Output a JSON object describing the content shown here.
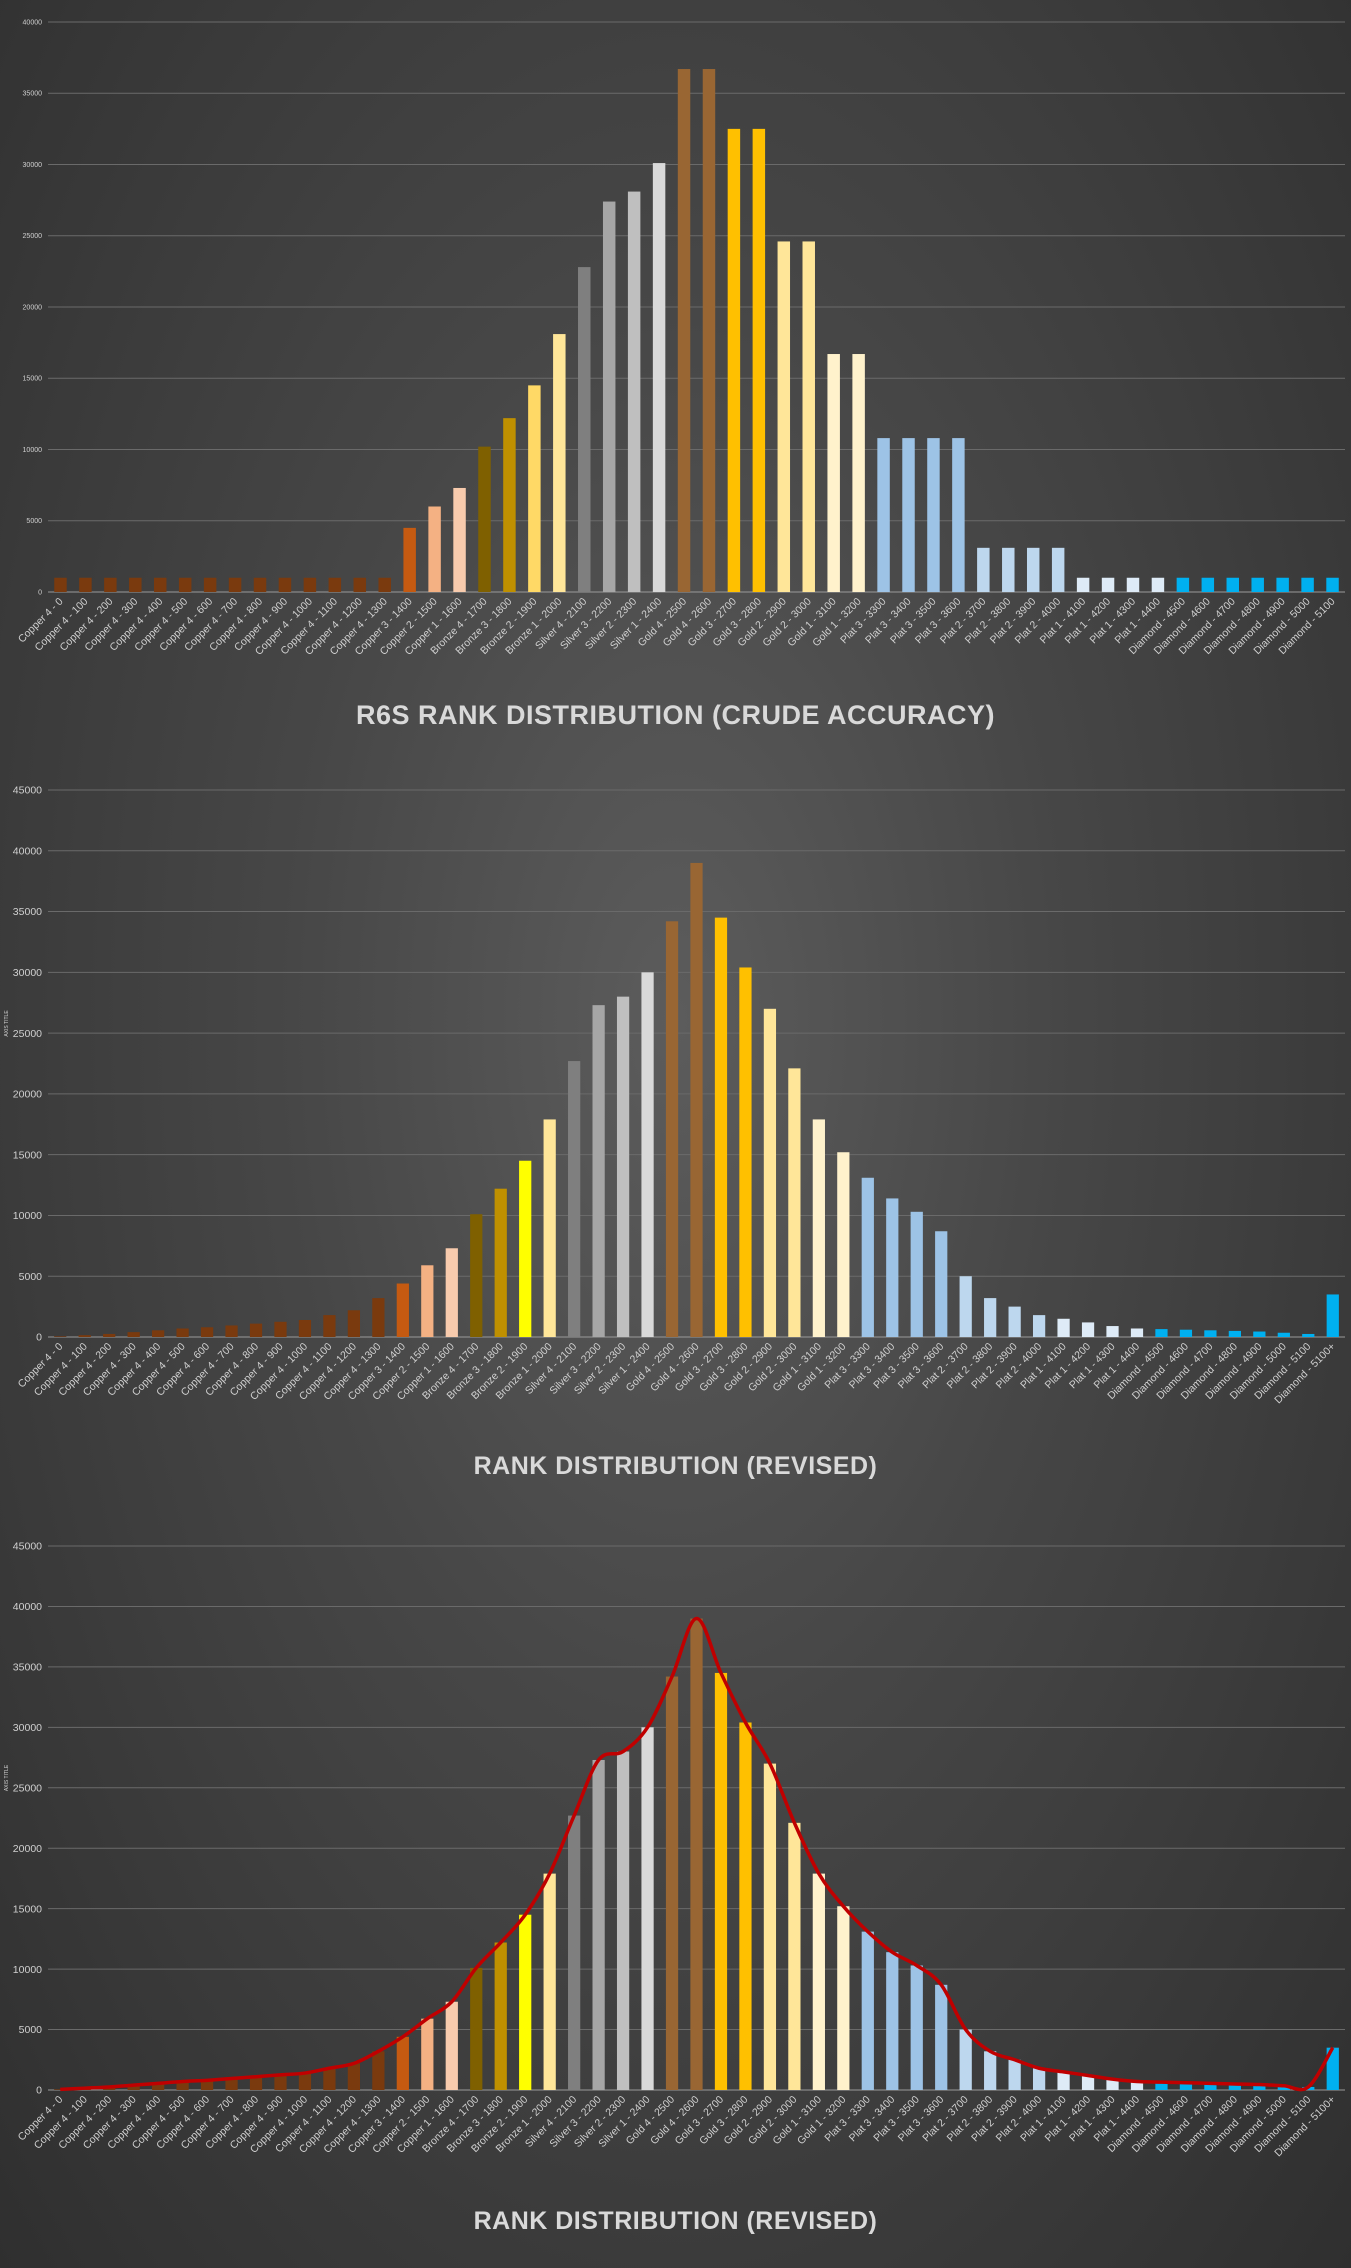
{
  "chart_data": [
    {
      "type": "bar",
      "title": "R6S RANK DISTRIBUTION (CRUDE ACCURACY)",
      "xlabel": "",
      "ylabel": "",
      "ylim": [
        0,
        40000
      ],
      "yticks": [
        0,
        5000,
        10000,
        15000,
        20000,
        25000,
        30000,
        35000,
        40000
      ],
      "grid": true,
      "categories": [
        "Copper 4 - 0",
        "Copper 4 - 100",
        "Copper 4 - 200",
        "Copper 4 - 300",
        "Copper 4 - 400",
        "Copper 4 - 500",
        "Copper 4 - 600",
        "Copper 4 - 700",
        "Copper 4 - 800",
        "Copper 4 - 900",
        "Copper 4 - 1000",
        "Copper 4 - 1100",
        "Copper 4 - 1200",
        "Copper 4 - 1300",
        "Copper 3 - 1400",
        "Copper 2 - 1500",
        "Copper 1 - 1600",
        "Bronze 4 - 1700",
        "Bronze 3 - 1800",
        "Bronze 2 - 1900",
        "Bronze 1 - 2000",
        "Silver 4 - 2100",
        "Silver 3 - 2200",
        "Silver 2 - 2300",
        "Silver 1 - 2400",
        "Gold 4 - 2500",
        "Gold 4 - 2600",
        "Gold 3 - 2700",
        "Gold 3 - 2800",
        "Gold 2 - 2900",
        "Gold 2 - 3000",
        "Gold 1 - 3100",
        "Gold 1 - 3200",
        "Plat 3 - 3300",
        "Plat 3 - 3400",
        "Plat 3 - 3500",
        "Plat 3 - 3600",
        "Plat 2 - 3700",
        "Plat 2 - 3800",
        "Plat 2 - 3900",
        "Plat 2 - 4000",
        "Plat 1 - 4100",
        "Plat 1 - 4200",
        "Plat 1 - 4300",
        "Plat 1 - 4400",
        "Diamond - 4500",
        "Diamond - 4600",
        "Diamond - 4700",
        "Diamond - 4800",
        "Diamond - 4900",
        "Diamond - 5000",
        "Diamond - 5100"
      ],
      "values": [
        1000,
        1000,
        1000,
        1000,
        1000,
        1000,
        1000,
        1000,
        1000,
        1000,
        1000,
        1000,
        1000,
        1000,
        4500,
        6000,
        7300,
        10200,
        12200,
        14500,
        18100,
        22800,
        27400,
        28100,
        30100,
        36700,
        36700,
        32500,
        32500,
        24600,
        24600,
        16700,
        16700,
        10800,
        10800,
        10800,
        10800,
        3100,
        3100,
        3100,
        3100,
        1000,
        1000,
        1000,
        1000,
        1000,
        1000,
        1000,
        1000,
        1000,
        1000,
        1000
      ],
      "colors": [
        "#7a3a0e",
        "#7a3a0e",
        "#7a3a0e",
        "#7a3a0e",
        "#7a3a0e",
        "#7a3a0e",
        "#7a3a0e",
        "#7a3a0e",
        "#7a3a0e",
        "#7a3a0e",
        "#7a3a0e",
        "#7a3a0e",
        "#7a3a0e",
        "#7a3a0e",
        "#c55a11",
        "#f4b183",
        "#f8cbad",
        "#7f6000",
        "#bf9000",
        "#ffd966",
        "#ffe699",
        "#7f7f7f",
        "#a6a6a6",
        "#bfbfbf",
        "#d9d9d9",
        "#996633",
        "#996633",
        "#ffc000",
        "#ffc000",
        "#ffe699",
        "#ffe699",
        "#fff2cc",
        "#fff2cc",
        "#9dc3e6",
        "#9dc3e6",
        "#9dc3e6",
        "#9dc3e6",
        "#bdd7ee",
        "#bdd7ee",
        "#bdd7ee",
        "#bdd7ee",
        "#deebf7",
        "#deebf7",
        "#deebf7",
        "#deebf7",
        "#00b0f0",
        "#00b0f0",
        "#00b0f0",
        "#00b0f0",
        "#00b0f0",
        "#00b0f0",
        "#00b0f0"
      ]
    },
    {
      "type": "bar",
      "title": "RANK DISTRIBUTION (REVISED)",
      "xlabel": "",
      "ylabel": "AXIS TITLE",
      "ylim": [
        0,
        45000
      ],
      "yticks": [
        0,
        5000,
        10000,
        15000,
        20000,
        25000,
        30000,
        35000,
        40000,
        45000
      ],
      "grid": true,
      "categories": [
        "Copper 4 - 0",
        "Copper 4 - 100",
        "Copper 4 - 200",
        "Copper 4 - 300",
        "Copper 4 - 400",
        "Copper 4 - 500",
        "Copper 4 - 600",
        "Copper 4 - 700",
        "Copper 4 - 800",
        "Copper 4 - 900",
        "Copper 4 - 1000",
        "Copper 4 - 1100",
        "Copper 4 - 1200",
        "Copper 4 - 1300",
        "Copper 3 - 1400",
        "Copper 2 - 1500",
        "Copper 1 - 1600",
        "Bronze 4 - 1700",
        "Bronze 3 - 1800",
        "Bronze 2 - 1900",
        "Bronze 1 - 2000",
        "Silver 4 - 2100",
        "Silver 3 - 2200",
        "Silver 2 - 2300",
        "Silver 1 - 2400",
        "Gold 4 - 2500",
        "Gold 4 - 2600",
        "Gold 3 - 2700",
        "Gold 3 - 2800",
        "Gold 2 - 2900",
        "Gold 2 - 3000",
        "Gold 1 - 3100",
        "Gold 1 - 3200",
        "Plat 3 - 3300",
        "Plat 3 - 3400",
        "Plat 3 - 3500",
        "Plat 3 - 3600",
        "Plat 2 - 3700",
        "Plat 2 - 3800",
        "Plat 2 - 3900",
        "Plat 2 - 4000",
        "Plat 1 - 4100",
        "Plat 1 - 4200",
        "Plat 1 - 4300",
        "Plat 1 - 4400",
        "Diamond - 4500",
        "Diamond - 4600",
        "Diamond - 4700",
        "Diamond - 4800",
        "Diamond - 4900",
        "Diamond - 5000",
        "Diamond - 5100",
        "Diamond - 5100+"
      ],
      "values": [
        50,
        150,
        250,
        400,
        550,
        700,
        800,
        950,
        1100,
        1250,
        1400,
        1800,
        2200,
        3200,
        4400,
        5900,
        7300,
        10100,
        12200,
        14500,
        17900,
        22700,
        27300,
        28000,
        30000,
        34200,
        39000,
        34500,
        30400,
        27000,
        22100,
        17900,
        15200,
        13100,
        11400,
        10300,
        8700,
        5000,
        3200,
        2500,
        1800,
        1500,
        1200,
        900,
        700,
        650,
        600,
        550,
        500,
        450,
        350,
        250,
        3500
      ],
      "colors": [
        "#7a3a0e",
        "#7a3a0e",
        "#7a3a0e",
        "#7a3a0e",
        "#7a3a0e",
        "#7a3a0e",
        "#7a3a0e",
        "#7a3a0e",
        "#7a3a0e",
        "#7a3a0e",
        "#7a3a0e",
        "#7a3a0e",
        "#7a3a0e",
        "#7a3a0e",
        "#c55a11",
        "#f4b183",
        "#f8cbad",
        "#7f6000",
        "#bf9000",
        "#ffff00",
        "#ffe699",
        "#7f7f7f",
        "#a6a6a6",
        "#bfbfbf",
        "#d9d9d9",
        "#996633",
        "#996633",
        "#ffc000",
        "#ffc000",
        "#ffe699",
        "#ffe699",
        "#fff2cc",
        "#fff2cc",
        "#9dc3e6",
        "#9dc3e6",
        "#9dc3e6",
        "#9dc3e6",
        "#bdd7ee",
        "#bdd7ee",
        "#bdd7ee",
        "#bdd7ee",
        "#deebf7",
        "#deebf7",
        "#deebf7",
        "#deebf7",
        "#00b0f0",
        "#00b0f0",
        "#00b0f0",
        "#00b0f0",
        "#00b0f0",
        "#00b0f0",
        "#00b0f0",
        "#00b0f0"
      ]
    },
    {
      "type": "bar",
      "title": "RANK DISTRIBUTION (REVISED)",
      "xlabel": "",
      "ylabel": "AXIS TITLE",
      "ylim": [
        0,
        45000
      ],
      "yticks": [
        0,
        5000,
        10000,
        15000,
        20000,
        25000,
        30000,
        35000,
        40000,
        45000
      ],
      "grid": true,
      "trendline": true,
      "trendline_color": "#c00000",
      "categories": [
        "Copper 4 - 0",
        "Copper 4 - 100",
        "Copper 4 - 200",
        "Copper 4 - 300",
        "Copper 4 - 400",
        "Copper 4 - 500",
        "Copper 4 - 600",
        "Copper 4 - 700",
        "Copper 4 - 800",
        "Copper 4 - 900",
        "Copper 4 - 1000",
        "Copper 4 - 1100",
        "Copper 4 - 1200",
        "Copper 4 - 1300",
        "Copper 3 - 1400",
        "Copper 2 - 1500",
        "Copper 1 - 1600",
        "Bronze 4 - 1700",
        "Bronze 3 - 1800",
        "Bronze 2 - 1900",
        "Bronze 1 - 2000",
        "Silver 4 - 2100",
        "Silver 3 - 2200",
        "Silver 2 - 2300",
        "Silver 1 - 2400",
        "Gold 4 - 2500",
        "Gold 4 - 2600",
        "Gold 3 - 2700",
        "Gold 3 - 2800",
        "Gold 2 - 2900",
        "Gold 2 - 3000",
        "Gold 1 - 3100",
        "Gold 1 - 3200",
        "Plat 3 - 3300",
        "Plat 3 - 3400",
        "Plat 3 - 3500",
        "Plat 3 - 3600",
        "Plat 2 - 3700",
        "Plat 2 - 3800",
        "Plat 2 - 3900",
        "Plat 2 - 4000",
        "Plat 1 - 4100",
        "Plat 1 - 4200",
        "Plat 1 - 4300",
        "Plat 1 - 4400",
        "Diamond - 4500",
        "Diamond - 4600",
        "Diamond - 4700",
        "Diamond - 4800",
        "Diamond - 4900",
        "Diamond - 5000",
        "Diamond - 5100",
        "Diamond - 5100+"
      ],
      "values": [
        50,
        150,
        250,
        400,
        550,
        700,
        800,
        950,
        1100,
        1250,
        1400,
        1800,
        2200,
        3200,
        4400,
        5900,
        7300,
        10100,
        12200,
        14500,
        17900,
        22700,
        27300,
        28000,
        30000,
        34200,
        39000,
        34500,
        30400,
        27000,
        22100,
        17900,
        15200,
        13100,
        11400,
        10300,
        8700,
        5000,
        3200,
        2500,
        1800,
        1500,
        1200,
        900,
        700,
        650,
        600,
        550,
        500,
        450,
        350,
        250,
        3500
      ],
      "colors": [
        "#7a3a0e",
        "#7a3a0e",
        "#7a3a0e",
        "#7a3a0e",
        "#7a3a0e",
        "#7a3a0e",
        "#7a3a0e",
        "#7a3a0e",
        "#7a3a0e",
        "#7a3a0e",
        "#7a3a0e",
        "#7a3a0e",
        "#7a3a0e",
        "#7a3a0e",
        "#c55a11",
        "#f4b183",
        "#f8cbad",
        "#7f6000",
        "#bf9000",
        "#ffff00",
        "#ffe699",
        "#7f7f7f",
        "#a6a6a6",
        "#bfbfbf",
        "#d9d9d9",
        "#996633",
        "#996633",
        "#ffc000",
        "#ffc000",
        "#ffe699",
        "#ffe699",
        "#fff2cc",
        "#fff2cc",
        "#9dc3e6",
        "#9dc3e6",
        "#9dc3e6",
        "#9dc3e6",
        "#bdd7ee",
        "#bdd7ee",
        "#bdd7ee",
        "#bdd7ee",
        "#deebf7",
        "#deebf7",
        "#deebf7",
        "#deebf7",
        "#00b0f0",
        "#00b0f0",
        "#00b0f0",
        "#00b0f0",
        "#00b0f0",
        "#00b0f0",
        "#00b0f0",
        "#00b0f0"
      ]
    }
  ]
}
